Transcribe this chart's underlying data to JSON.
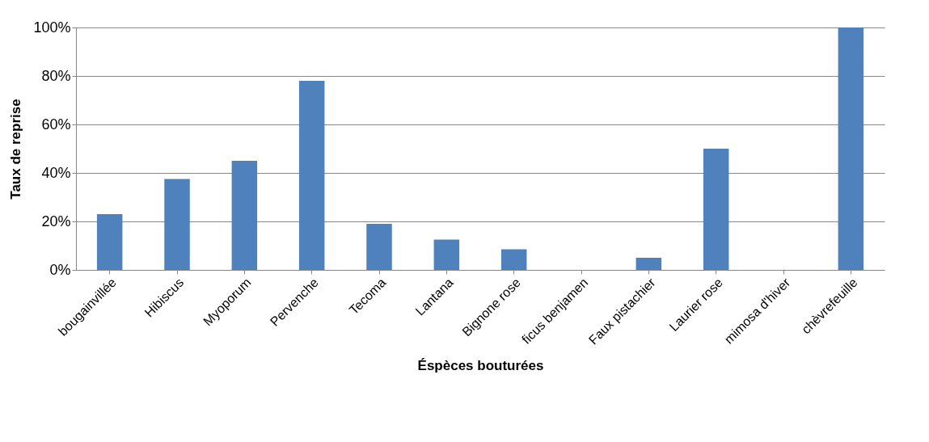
{
  "chart_data": {
    "type": "bar",
    "xlabel": "Éspèces bouturées",
    "ylabel": "Taux de reprise",
    "categories": [
      "bougainvillée",
      "Hibiscus",
      "Myoporum",
      "Pervenche",
      "Tecoma",
      "Lantana",
      "Bignone rose",
      "ficus benjamen",
      "Faux pistachier",
      "Laurier rose",
      "mimosa d'hiver",
      "chèvrefeuille"
    ],
    "values": [
      23,
      37.5,
      45,
      78,
      19,
      12.5,
      8.5,
      0,
      5,
      50,
      0,
      100
    ],
    "color": "#4f81bd",
    "ylim": [
      0,
      100
    ],
    "yticks": [
      {
        "value": 0,
        "label": "0%"
      },
      {
        "value": 20,
        "label": "20%"
      },
      {
        "value": 40,
        "label": "40%"
      },
      {
        "value": 60,
        "label": "60%"
      },
      {
        "value": 80,
        "label": "80%"
      },
      {
        "value": 100,
        "label": "100%"
      }
    ],
    "grid": "y"
  }
}
